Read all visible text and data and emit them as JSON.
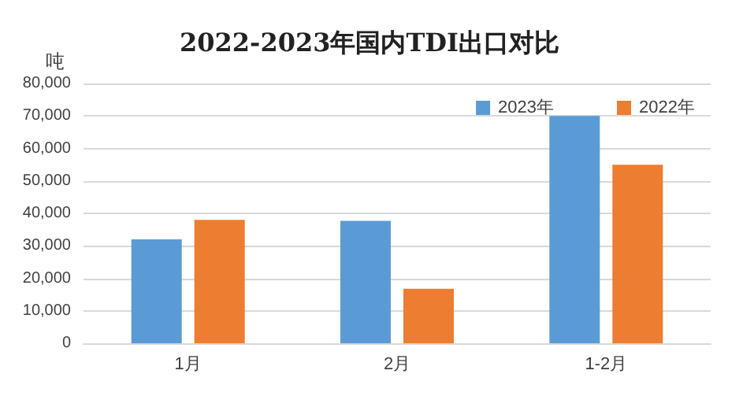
{
  "chart_data": {
    "type": "bar",
    "title": "2022-2023年国内TDI出口对比",
    "ylabel": "吨",
    "categories": [
      "1月",
      "2月",
      "1-2月"
    ],
    "series": [
      {
        "name": "2023年",
        "color": "#5b9bd5",
        "values": [
          32000,
          37700,
          70000
        ]
      },
      {
        "name": "2022年",
        "color": "#ed7d31",
        "values": [
          38000,
          16800,
          55000
        ]
      }
    ],
    "ylim": [
      0,
      80000
    ],
    "yticks": [
      0,
      {
        "value": 10000,
        "label": "10,000"
      },
      {
        "value": 20000,
        "label": "20,000"
      },
      {
        "value": 30000,
        "label": "30,000"
      },
      {
        "value": 40000,
        "label": "40,000"
      },
      {
        "value": 50000,
        "label": "50,000"
      },
      {
        "value": 60000,
        "label": "60,000"
      },
      {
        "value": 70000,
        "label": "70,000"
      },
      {
        "value": 80000,
        "label": "80,000"
      }
    ],
    "grid": "y",
    "legend": "top right"
  }
}
